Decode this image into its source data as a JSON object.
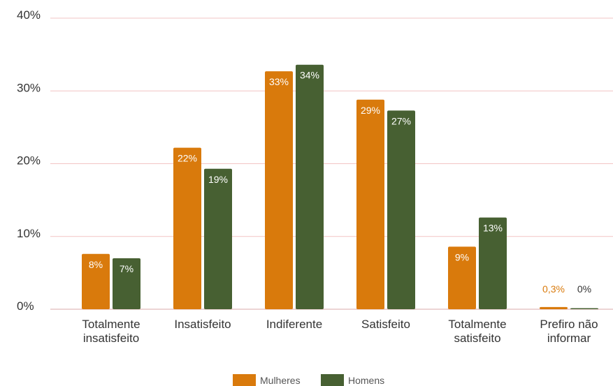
{
  "chart_data": {
    "type": "bar",
    "categories": [
      [
        "Totalmente",
        "insatisfeito"
      ],
      [
        "Insatisfeito"
      ],
      [
        "Indiferente"
      ],
      [
        "Satisfeito"
      ],
      [
        "Totalmente",
        "satisfeito"
      ],
      [
        "Prefiro não",
        "informar"
      ]
    ],
    "series": [
      {
        "name": "Mulheres",
        "color": "#d97a0c",
        "values": [
          7.6,
          22.2,
          32.7,
          28.8,
          8.6,
          0.3
        ],
        "labels": [
          "8%",
          "22%",
          "33%",
          "29%",
          "9%",
          "0,3%"
        ]
      },
      {
        "name": "Homens",
        "color": "#476032",
        "values": [
          7.0,
          19.3,
          33.6,
          27.3,
          12.6,
          0.05
        ],
        "labels": [
          "7%",
          "19%",
          "34%",
          "27%",
          "13%",
          "0%"
        ]
      }
    ],
    "yticks": [
      "0%",
      "10%",
      "20%",
      "30%",
      "40%"
    ],
    "ylim": [
      0,
      40
    ],
    "grid": true,
    "gridColor": "#f2c4c4",
    "legend": "bottom-center"
  }
}
